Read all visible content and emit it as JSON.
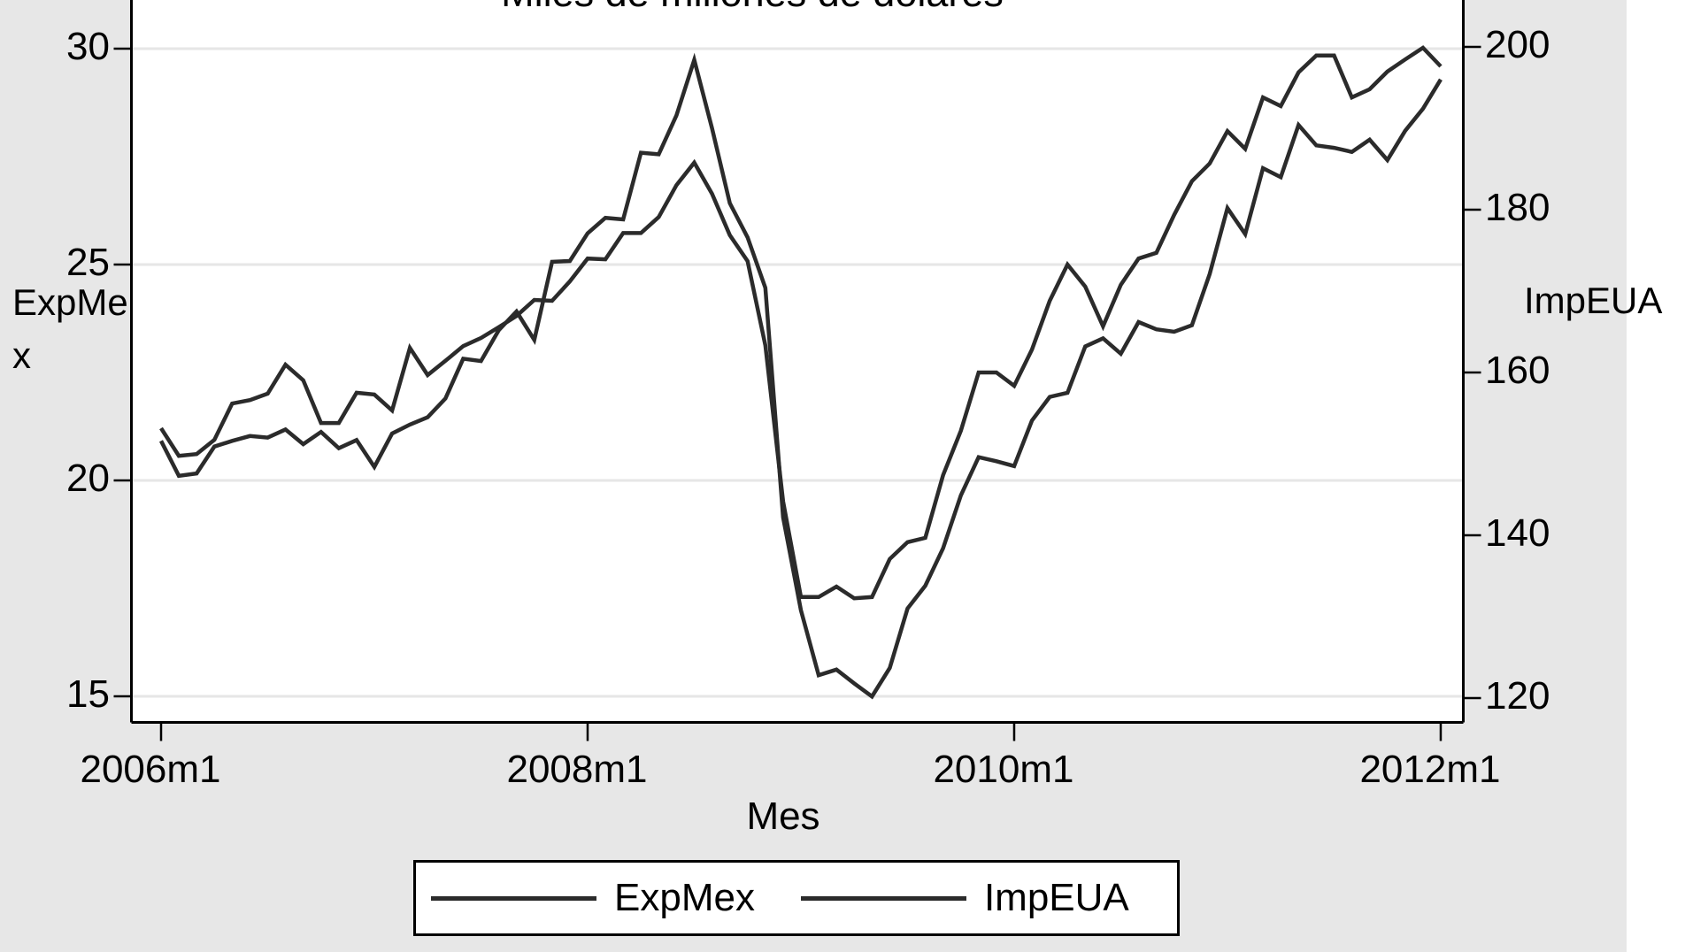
{
  "title": "Miles de millones de dólares",
  "axes": {
    "x": {
      "label": "Mes",
      "ticks": [
        {
          "label": "2006m1",
          "month_index": 0
        },
        {
          "label": "2008m1",
          "month_index": 24
        },
        {
          "label": "2010m1",
          "month_index": 48
        },
        {
          "label": "2012m1",
          "month_index": 72
        }
      ]
    },
    "y_left": {
      "label": "ExpMex",
      "ticks": [
        30,
        25,
        20,
        15
      ]
    },
    "y_right": {
      "label": "ImpEUA",
      "ticks": [
        200,
        180,
        160,
        140,
        120
      ]
    }
  },
  "legend": {
    "items": [
      {
        "label": "ExpMex"
      },
      {
        "label": "ImpEUA"
      }
    ]
  },
  "colors": {
    "line": "#2b2b2b",
    "axis": "#000000",
    "gridline": "#e6e6e6",
    "plot_bg": "#ffffff",
    "outer_bg": "#e7e7e7"
  },
  "chart_data": {
    "type": "line",
    "title": "Miles de millones de dólares",
    "xlabel": "Mes",
    "x_unit": "month",
    "x_start": "2006m1",
    "x_end": "2012m1",
    "x_tick_labels": [
      "2006m1",
      "2008m1",
      "2010m1",
      "2012m1"
    ],
    "ylim_left": [
      14.6,
      30.4
    ],
    "ylim_right": [
      117.5,
      201.5
    ],
    "y_left_ticks": [
      15,
      20,
      25,
      30
    ],
    "y_right_ticks": [
      120,
      140,
      160,
      180,
      200
    ],
    "grid": "horizontal-left-ticks-only",
    "legend_position": "bottom-center",
    "series": [
      {
        "name": "ExpMex",
        "axis": "left",
        "values": [
          21.21,
          20.57,
          20.61,
          20.94,
          21.78,
          21.86,
          22.01,
          22.68,
          22.32,
          21.33,
          21.33,
          22.03,
          21.99,
          21.62,
          23.07,
          22.44,
          22.77,
          23.11,
          23.3,
          23.55,
          23.81,
          24.18,
          24.16,
          24.61,
          25.14,
          25.12,
          25.73,
          25.73,
          26.1,
          26.84,
          27.36,
          26.64,
          25.68,
          25.08,
          23.13,
          19.51,
          17.3,
          17.3,
          17.54,
          17.27,
          17.3,
          18.18,
          18.57,
          18.67,
          20.12,
          21.15,
          22.5,
          22.5,
          22.19,
          23.03,
          24.16,
          25.0,
          24.49,
          23.57,
          24.53,
          25.14,
          25.27,
          26.15,
          26.93,
          27.34,
          28.09,
          27.68,
          28.87,
          28.67,
          29.45,
          29.84,
          29.84,
          28.87,
          29.06,
          29.47,
          29.75,
          30.02,
          29.59
        ]
      },
      {
        "name": "ImpEUA",
        "axis": "right",
        "values": [
          151.6,
          147.3,
          147.6,
          150.9,
          151.6,
          152.2,
          152.0,
          153.0,
          151.2,
          152.7,
          150.7,
          151.7,
          148.4,
          152.5,
          153.6,
          154.5,
          156.8,
          161.7,
          161.4,
          165.2,
          167.5,
          164.0,
          173.6,
          173.7,
          177.1,
          179.0,
          178.8,
          187.0,
          186.8,
          191.6,
          198.4,
          190.0,
          180.8,
          176.6,
          170.4,
          142.2,
          130.8,
          122.8,
          123.5,
          121.8,
          120.2,
          123.7,
          131.0,
          133.8,
          138.4,
          144.9,
          149.6,
          149.1,
          148.5,
          154.1,
          157.0,
          157.5,
          163.2,
          164.2,
          162.3,
          166.2,
          165.3,
          165.0,
          165.8,
          172.1,
          180.2,
          177.0,
          185.1,
          184.0,
          190.4,
          187.9,
          187.6,
          187.1,
          188.6,
          186.1,
          189.7,
          192.4,
          196.0
        ]
      }
    ]
  }
}
